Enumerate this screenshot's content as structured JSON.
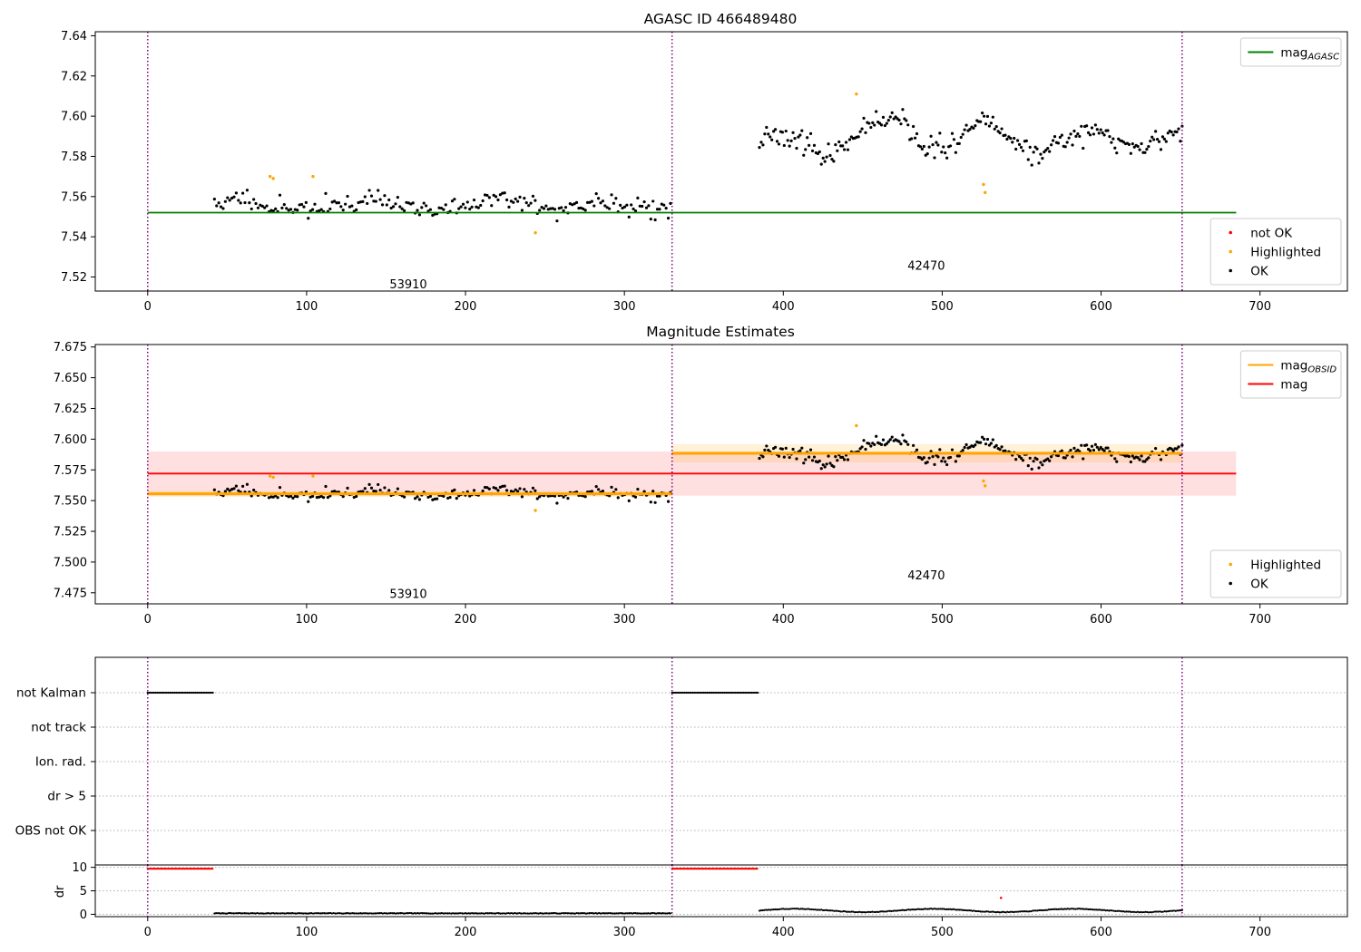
{
  "chart_data": [
    {
      "type": "scatter",
      "title": "AGASC ID 466489480",
      "xlim": [
        -33,
        755
      ],
      "ylim": [
        7.513,
        7.642
      ],
      "x_ticks": [
        0,
        100,
        200,
        300,
        400,
        500,
        600,
        700
      ],
      "y_ticks": [
        7.52,
        7.54,
        7.56,
        7.58,
        7.6,
        7.62,
        7.64
      ],
      "y_tick_decimals": 2,
      "obs_boundaries": [
        0,
        330,
        651
      ],
      "obs_labels": [
        {
          "text": "53910",
          "x": 164,
          "y": 7.5167
        },
        {
          "text": "42470",
          "x": 490,
          "y": 7.5258
        }
      ],
      "lines": [
        {
          "name": "mag_AGASC",
          "color": "#008000",
          "x": [
            0,
            685
          ],
          "y": [
            7.552,
            7.552
          ]
        }
      ],
      "segments": [
        {
          "x_start": 42,
          "x_end": 329,
          "n": 210,
          "mean": 7.556,
          "noise": 0.0042,
          "wave_amp": 0.004,
          "seed": 11
        },
        {
          "x_start": 385,
          "x_end": 651,
          "n": 240,
          "mean": 7.588,
          "noise": 0.0045,
          "wave_amp": 0.009,
          "seed": 23
        }
      ],
      "highlighted": {
        "x": [
          77,
          79,
          104,
          244,
          446,
          526,
          527
        ],
        "y": [
          7.57,
          7.569,
          7.57,
          7.542,
          7.611,
          7.566,
          7.562
        ]
      },
      "legends": [
        {
          "position": "top-right",
          "items": [
            {
              "label": "mag",
              "sub": "AGASC",
              "kind": "line",
              "color": "#008000"
            }
          ]
        },
        {
          "position": "bottom-right",
          "items": [
            {
              "label": "not OK",
              "kind": "dot",
              "color": "#ff0000"
            },
            {
              "label": "Highlighted",
              "kind": "dot",
              "color": "#ffa500"
            },
            {
              "label": "OK",
              "kind": "dot",
              "color": "#000000"
            }
          ]
        }
      ]
    },
    {
      "type": "scatter",
      "title": "Magnitude Estimates",
      "xlim": [
        -33,
        755
      ],
      "ylim": [
        7.466,
        7.677
      ],
      "x_ticks": [
        0,
        100,
        200,
        300,
        400,
        500,
        600,
        700
      ],
      "y_ticks": [
        7.475,
        7.5,
        7.525,
        7.55,
        7.575,
        7.6,
        7.625,
        7.65,
        7.675
      ],
      "y_tick_decimals": 3,
      "obs_boundaries": [
        0,
        330,
        651
      ],
      "obs_labels": [
        {
          "text": "53910",
          "x": 164,
          "y": 7.4745
        },
        {
          "text": "42470",
          "x": 490,
          "y": 7.4895
        }
      ],
      "bands": [
        {
          "color": "#ff0000",
          "opacity": 0.12,
          "x": [
            0,
            685
          ],
          "y": [
            7.554,
            7.59
          ]
        },
        {
          "color": "#ffa500",
          "opacity": 0.15,
          "x": [
            0,
            330
          ],
          "y": [
            7.553,
            7.558
          ]
        },
        {
          "color": "#ffa500",
          "opacity": 0.15,
          "x": [
            330,
            651
          ],
          "y": [
            7.581,
            7.596
          ]
        }
      ],
      "lines": [
        {
          "name": "mag",
          "color": "#ff0000",
          "x": [
            0,
            685
          ],
          "y": [
            7.572,
            7.572
          ]
        },
        {
          "name": "mag_OBSID",
          "color": "#ffa500",
          "x": [
            0,
            330
          ],
          "y": [
            7.5555,
            7.5555
          ]
        },
        {
          "name": "mag_OBSID",
          "color": "#ffa500",
          "x": [
            330,
            651
          ],
          "y": [
            7.5885,
            7.5885
          ]
        }
      ],
      "segments": [
        {
          "x_start": 42,
          "x_end": 329,
          "n": 210,
          "mean": 7.556,
          "noise": 0.0042,
          "wave_amp": 0.004,
          "seed": 11
        },
        {
          "x_start": 385,
          "x_end": 651,
          "n": 240,
          "mean": 7.588,
          "noise": 0.0045,
          "wave_amp": 0.009,
          "seed": 23
        }
      ],
      "highlighted": {
        "x": [
          77,
          79,
          104,
          244,
          446,
          526,
          527
        ],
        "y": [
          7.57,
          7.569,
          7.57,
          7.542,
          7.611,
          7.566,
          7.562
        ]
      },
      "legends": [
        {
          "position": "top-right",
          "items": [
            {
              "label": "mag",
              "sub": "OBSID",
              "kind": "line",
              "color": "#ffa500"
            },
            {
              "label": "mag",
              "kind": "line",
              "color": "#ff0000"
            }
          ]
        },
        {
          "position": "bottom-right",
          "items": [
            {
              "label": "Highlighted",
              "kind": "dot",
              "color": "#ffa500"
            },
            {
              "label": "OK",
              "kind": "dot",
              "color": "#000000"
            }
          ]
        }
      ]
    },
    {
      "type": "scatter",
      "title": "",
      "xlim": [
        -33,
        755
      ],
      "flag_labels": [
        "not Kalman",
        "not track",
        "Ion. rad.",
        "dr > 5",
        "OBS not OK"
      ],
      "flag_runs": [
        {
          "flag": "not Kalman",
          "x_start": 0,
          "x_end": 41
        },
        {
          "flag": "not Kalman",
          "x_start": 330,
          "x_end": 384
        }
      ],
      "obs_boundaries": [
        0,
        330,
        651
      ]
    },
    {
      "type": "scatter",
      "title": "",
      "ylabel": "dr",
      "xlim": [
        -33,
        755
      ],
      "ylim": [
        -0.5,
        10.5
      ],
      "x_ticks": [
        0,
        100,
        200,
        300,
        400,
        500,
        600,
        700
      ],
      "y_ticks": [
        0,
        5,
        10
      ],
      "obs_boundaries": [
        0,
        330,
        651
      ],
      "not_ok_runs": [
        {
          "x_start": 0,
          "x_end": 41,
          "y": 9.7
        },
        {
          "x_start": 330,
          "x_end": 384,
          "y": 9.7
        }
      ],
      "outlier": {
        "x": 537,
        "y": 3.5
      },
      "ok_segments": [
        {
          "x_start": 42,
          "x_end": 329,
          "base": 0.15
        },
        {
          "x_start": 385,
          "x_end": 651,
          "base": 0.5
        }
      ]
    }
  ]
}
